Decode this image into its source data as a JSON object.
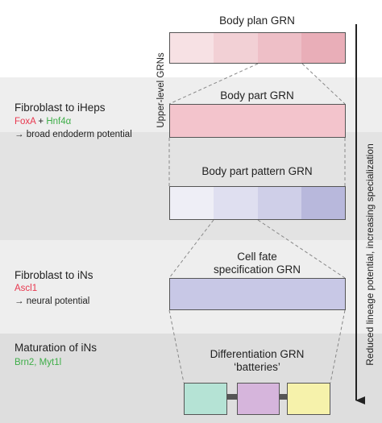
{
  "sections": {
    "iheps": {
      "title": "Fibroblast to iHeps",
      "factor1": "FoxA",
      "plus": " + ",
      "factor2": "Hnf4α",
      "potential": "→ broad endoderm potential"
    },
    "ins": {
      "title": "Fibroblast to iNs",
      "factor": "Ascl1",
      "potential": "→ neural potential"
    },
    "maturation": {
      "title": "Maturation of iNs",
      "factors": "Brn2, Myt1l"
    }
  },
  "grn_labels": {
    "body_plan": "Body plan GRN",
    "body_part": "Body part GRN",
    "body_part_pattern": "Body part pattern GRN",
    "cell_fate_line1": "Cell fate",
    "cell_fate_line2": "specification GRN",
    "differentiation_line1": "Differentiation GRN",
    "differentiation_line2": "‘batteries’"
  },
  "side_labels": {
    "upper_level": "Upper-level GRNs",
    "arrow": "Reduced lineage potential, increasing specialization"
  },
  "colors": {
    "body_plan_segments": [
      "#f7e1e4",
      "#f2d0d5",
      "#eebfc7",
      "#e9aeb8"
    ],
    "body_part": "#f3c4cc",
    "pattern_segments": [
      "#eeeef6",
      "#dfdff0",
      "#cfcfe8",
      "#b8b8dc"
    ],
    "cell_fate": "#c8c8e6",
    "battery_1": "#b5e3d5",
    "battery_2": "#d6b5dc",
    "battery_3": "#f6f2ab",
    "connector": "#555555"
  }
}
